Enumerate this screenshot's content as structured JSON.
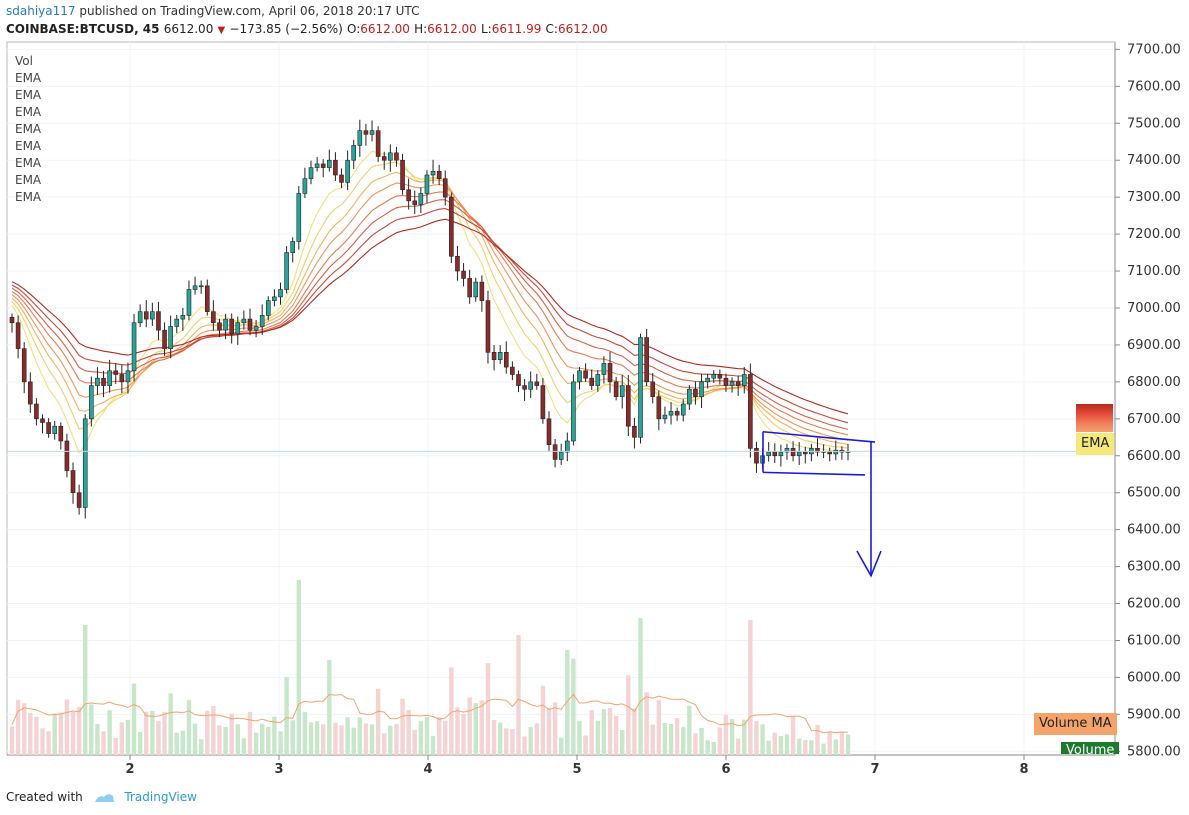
{
  "header": {
    "user": "sdahiya117",
    "published": " published on TradingView.com, April 06, 2018 20:17 UTC",
    "symbol": "COINBASE:BTCUSD, 45",
    "last": "6612.00",
    "change": "−173.85 (−2.56%)",
    "open_label": "O:",
    "open": "6612.00",
    "high_label": "H:",
    "high": "6612.00",
    "low_label": "L:",
    "low": "6611.99",
    "close_label": "C:",
    "close": "6612.00"
  },
  "legend": {
    "vol": "Vol",
    "ema": [
      "EMA",
      "EMA",
      "EMA",
      "EMA",
      "EMA",
      "EMA",
      "EMA",
      "EMA"
    ]
  },
  "tags": {
    "ema": "EMA",
    "volume_ma": "Volume MA",
    "volume": "Volume"
  },
  "footer": {
    "created": "Created with",
    "brand": "TradingView"
  },
  "colors": {
    "up": "#26a69a",
    "down": "#8a2a2a",
    "vol_up": "#c8e6c9",
    "vol_down": "#f3d3d3",
    "drawing": "#1a1adb",
    "ema_fast": "#f5e07a",
    "ema_slow": "#b52a1e",
    "vol_ma": "#f4a36a"
  },
  "chart_data": {
    "type": "candlestick",
    "x_ticks": [
      "2",
      "3",
      "4",
      "5",
      "6",
      "7",
      "8"
    ],
    "y_ticks": [
      "7700.00",
      "7600.00",
      "7500.00",
      "7400.00",
      "7300.00",
      "7200.00",
      "7100.00",
      "7000.00",
      "6900.00",
      "6800.00",
      "6700.00",
      "6600.00",
      "6500.00",
      "6400.00",
      "6300.00",
      "6200.00",
      "6100.00",
      "6000.00",
      "5900.00",
      "5800.00"
    ],
    "ylim": [
      5790,
      7720
    ],
    "price_line": 6612,
    "close_series": [
      6960,
      6890,
      6800,
      6740,
      6700,
      6690,
      6660,
      6680,
      6640,
      6560,
      6500,
      6460,
      6700,
      6790,
      6810,
      6790,
      6830,
      6820,
      6800,
      6830,
      6960,
      6990,
      6970,
      6990,
      6940,
      6890,
      6950,
      6970,
      6980,
      7050,
      7060,
      7060,
      6990,
      6960,
      6940,
      6970,
      6930,
      6960,
      6970,
      6940,
      6950,
      6980,
      7020,
      7030,
      7050,
      7150,
      7180,
      7310,
      7350,
      7380,
      7390,
      7380,
      7400,
      7360,
      7340,
      7400,
      7440,
      7480,
      7470,
      7480,
      7410,
      7400,
      7420,
      7400,
      7320,
      7290,
      7280,
      7310,
      7360,
      7370,
      7350,
      7300,
      7140,
      7100,
      7080,
      7030,
      7070,
      7020,
      6880,
      6860,
      6880,
      6840,
      6820,
      6790,
      6780,
      6800,
      6790,
      6700,
      6630,
      6590,
      6610,
      6640,
      6800,
      6830,
      6810,
      6790,
      6820,
      6850,
      6800,
      6760,
      6790,
      6680,
      6650,
      6920,
      6800,
      6760,
      6700,
      6710,
      6720,
      6710,
      6740,
      6780,
      6760,
      6800,
      6810,
      6820,
      6810,
      6790,
      6800,
      6790,
      6820,
      6620,
      6580,
      6600,
      6610,
      6600,
      6610,
      6620,
      6600,
      6610,
      6605,
      6620,
      6610,
      6612,
      6605,
      6615,
      6610,
      6612
    ],
    "annotations": {
      "pennant": {
        "upper": [
          6665,
          6637
        ],
        "lower": [
          6555,
          6548
        ],
        "target": 6275
      }
    }
  }
}
